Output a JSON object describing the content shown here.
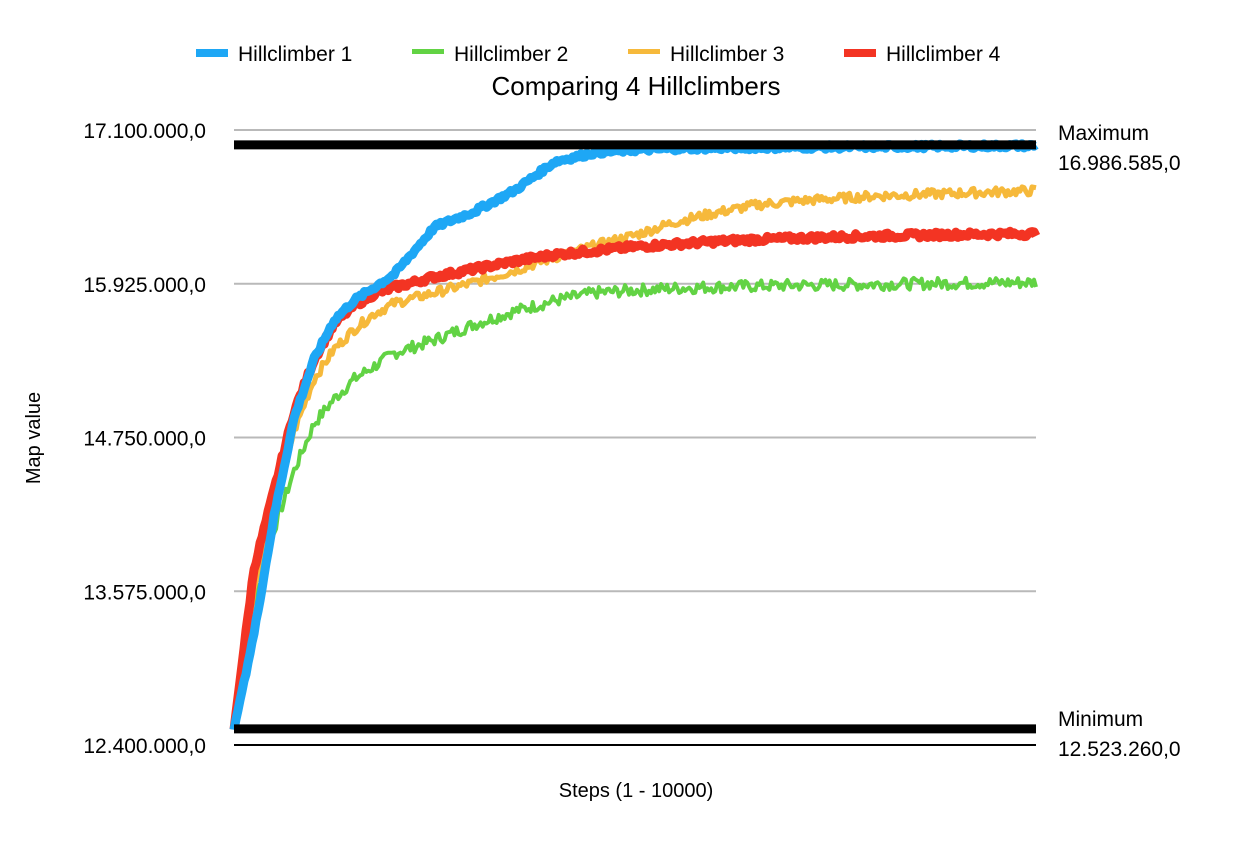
{
  "chart_data": {
    "type": "line",
    "title": "Comparing 4 Hillclimbers",
    "xlabel": "Steps (1 - 10000)",
    "ylabel": "Map value",
    "xlim": [
      1,
      10000
    ],
    "ylim": [
      12400000,
      17100000
    ],
    "y_ticks": [
      12400000,
      13575000,
      14750000,
      15925000,
      17100000
    ],
    "y_tick_labels": [
      "12.400.000,0",
      "13.575.000,0",
      "14.750.000,0",
      "15.925.000,0",
      "17.100.000,0"
    ],
    "grid": true,
    "legend_position": "top",
    "reference_lines": [
      {
        "name": "Maximum",
        "value": 16986585,
        "value_label": "16.986.585,0"
      },
      {
        "name": "Minimum",
        "value": 12523260,
        "value_label": "12.523.260,0"
      }
    ],
    "x": [
      1,
      250,
      500,
      750,
      1000,
      1250,
      1500,
      1750,
      2000,
      2500,
      3000,
      3500,
      4000,
      4500,
      5000,
      5500,
      6000,
      6500,
      7000,
      7500,
      8000,
      8500,
      9000,
      9500,
      10000
    ],
    "series": [
      {
        "name": "Hillclimber 1",
        "color": "#1ea7f5",
        "values": [
          12520000,
          13250000,
          14150000,
          14900000,
          15350000,
          15650000,
          15800000,
          15900000,
          16000000,
          16360000,
          16480000,
          16640000,
          16860000,
          16930000,
          16950000,
          16960000,
          16965000,
          16968000,
          16970000,
          16972000,
          16974000,
          16976000,
          16978000,
          16980000,
          16982000
        ]
      },
      {
        "name": "Hillclimber 2",
        "color": "#62d344",
        "values": [
          12520000,
          13500000,
          14050000,
          14500000,
          14860000,
          15050000,
          15200000,
          15300000,
          15400000,
          15500000,
          15620000,
          15720000,
          15800000,
          15860000,
          15880000,
          15895000,
          15905000,
          15912000,
          15918000,
          15922000,
          15926000,
          15930000,
          15934000,
          15937000,
          15940000
        ]
      },
      {
        "name": "Hillclimber 3",
        "color": "#f6b93b",
        "values": [
          12520000,
          13600000,
          14200000,
          14800000,
          15200000,
          15430000,
          15580000,
          15700000,
          15780000,
          15860000,
          15940000,
          16030000,
          16130000,
          16220000,
          16300000,
          16400000,
          16470000,
          16530000,
          16560000,
          16580000,
          16600000,
          16610000,
          16620000,
          16630000,
          16640000
        ]
      },
      {
        "name": "Hillclimber 4",
        "color": "#f33423",
        "values": [
          12520000,
          13750000,
          14350000,
          14950000,
          15350000,
          15620000,
          15760000,
          15850000,
          15900000,
          15980000,
          16040000,
          16100000,
          16150000,
          16180000,
          16210000,
          16230000,
          16250000,
          16265000,
          16275000,
          16285000,
          16292000,
          16298000,
          16303000,
          16307000,
          16310000
        ]
      }
    ]
  }
}
